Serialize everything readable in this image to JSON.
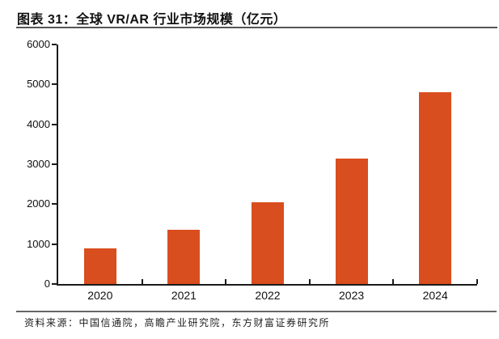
{
  "header": {
    "title": "图表 31：全球 VR/AR 行业市场规模（亿元）"
  },
  "footer": {
    "source": "资料来源：中国信通院，高瞻产业研究院，东方财富证券研究所"
  },
  "chart_data": {
    "type": "bar",
    "title": "全球 VR/AR 行业市场规模（亿元）",
    "categories": [
      "2020",
      "2021",
      "2022",
      "2023",
      "2024"
    ],
    "values": [
      900,
      1350,
      2050,
      3150,
      4800
    ],
    "xlabel": "",
    "ylabel": "",
    "ylim": [
      0,
      6000
    ],
    "yticks": [
      0,
      1000,
      2000,
      3000,
      4000,
      5000,
      6000
    ],
    "grid": false,
    "legend": "none",
    "bar_color": "#D94E1E",
    "axis_color": "#1a1a1a",
    "title_color": "#111111"
  }
}
